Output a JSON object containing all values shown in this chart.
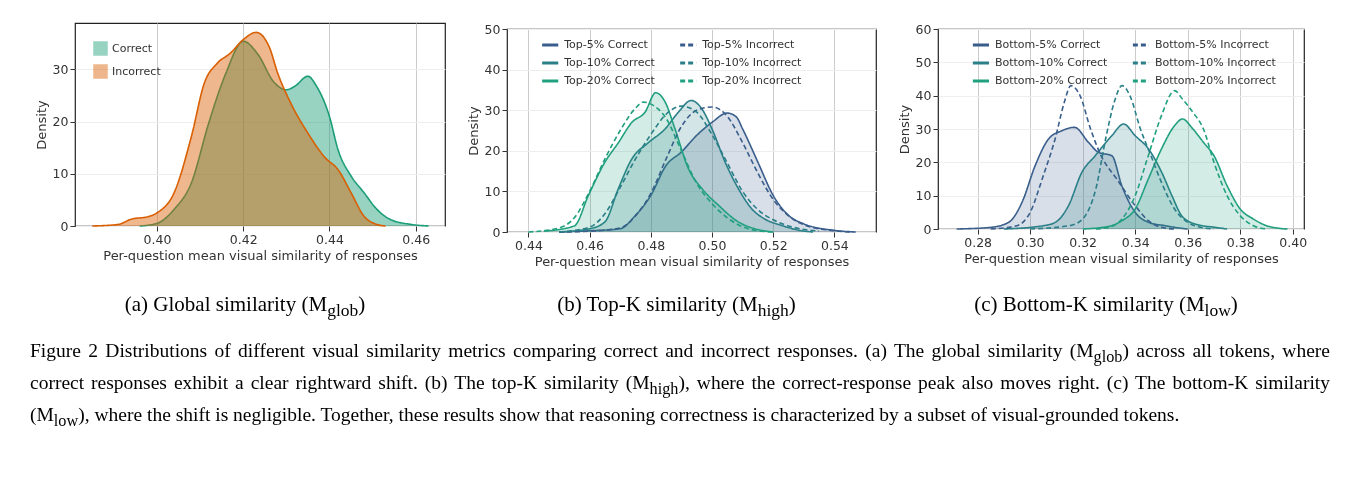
{
  "chart_data": [
    {
      "type": "area",
      "xlabel": "Per-question mean visual similarity of responses",
      "ylabel": "Density",
      "xlim": [
        0.381,
        0.4668
      ],
      "ylim": [
        0,
        38.9
      ],
      "xticks": [
        {
          "value": 0.4,
          "label": "0.40"
        },
        {
          "value": 0.42,
          "label": "0.42"
        },
        {
          "value": 0.44,
          "label": "0.44"
        },
        {
          "value": 0.46,
          "label": "0.46"
        }
      ],
      "yticks": [
        0,
        10,
        20,
        30
      ],
      "grid": true,
      "legend": "top left",
      "annotations": [
        "(a)  Global similarity (M$_{glob}$)",
        "Figure 2  Distributions of different visual similarity metrics comparing correct and incorrect responses. (a) The global similarity (M$_{glob}$) across all tokens, where correct responses exhibit a clear rightward shift. (b) The top-K similarity (M$_{high}$), where the correct-response peak also moves right. (c) The bottom-K similarity (M$_{low}$), where the shift is negligible. Together, these results show that reasoning correctness is characterized by a subset of visual-grounded tokens."
      ],
      "series": [
        {
          "name": "Correct",
          "color": "#1b9e77",
          "x": [
            0.396,
            0.4,
            0.404,
            0.408,
            0.412,
            0.416,
            0.42,
            0.4235,
            0.427,
            0.43,
            0.432,
            0.435,
            0.437,
            0.44,
            0.442,
            0.445,
            0.448,
            0.451,
            0.454,
            0.459,
            0.463
          ],
          "values": [
            0,
            0.5,
            3.2,
            8.3,
            19.7,
            29.3,
            35.4,
            32.8,
            27.7,
            26.1,
            26.8,
            28.7,
            26.8,
            21,
            14.6,
            9.6,
            6.4,
            3.2,
            1.3,
            0.3,
            0
          ]
        },
        {
          "name": "Incorrect",
          "color": "#d95f02",
          "x": [
            0.385,
            0.391,
            0.394,
            0.398,
            0.4,
            0.404,
            0.408,
            0.411,
            0.414,
            0.417,
            0.42,
            0.423,
            0.426,
            0.428,
            0.431,
            0.435,
            0.439,
            0.442,
            0.445,
            0.448,
            0.451,
            0.453
          ],
          "values": [
            0,
            0.3,
            1.3,
            1.8,
            2.5,
            6.4,
            17.2,
            27.4,
            31.2,
            33.1,
            35.7,
            37.1,
            34.4,
            29.3,
            23.6,
            17.8,
            13.1,
            10.8,
            6.4,
            1.9,
            0.3,
            0
          ]
        }
      ]
    },
    {
      "type": "area",
      "xlabel": "Per-question mean visual similarity of responses",
      "ylabel": "Density",
      "xlim": [
        0.433,
        0.5536
      ],
      "ylim": [
        0,
        50
      ],
      "xticks": [
        {
          "value": 0.44,
          "label": "0.44"
        },
        {
          "value": 0.46,
          "label": "0.46"
        },
        {
          "value": 0.48,
          "label": "0.48"
        },
        {
          "value": 0.5,
          "label": "0.50"
        },
        {
          "value": 0.52,
          "label": "0.52"
        },
        {
          "value": 0.54,
          "label": "0.54"
        }
      ],
      "yticks": [
        0,
        10,
        20,
        30,
        40,
        50
      ],
      "grid": true,
      "legend": "top",
      "annotations": [
        "(b)  Top-K similarity (M$_{high}$)"
      ],
      "series": [
        {
          "name": "Top-5% Correct",
          "color": "#3a5e8c",
          "x": [
            0.45,
            0.46,
            0.47,
            0.475,
            0.48,
            0.485,
            0.49,
            0.495,
            0.5,
            0.505,
            0.508,
            0.51,
            0.515,
            0.52,
            0.525,
            0.53,
            0.54,
            0.547
          ],
          "values": [
            0,
            0.3,
            0.8,
            4.1,
            9,
            16.4,
            19.7,
            23.8,
            27,
            29.3,
            28.3,
            25.4,
            17.2,
            9,
            4.1,
            2,
            0.4,
            0
          ]
        },
        {
          "name": "Top-10% Correct",
          "color": "#2a7f88",
          "x": [
            0.45,
            0.46,
            0.465,
            0.4694,
            0.4738,
            0.4792,
            0.4847,
            0.489,
            0.4932,
            0.4967,
            0.5,
            0.5043,
            0.5086,
            0.513,
            0.517,
            0.5228,
            0.528,
            0.533
          ],
          "values": [
            0,
            0.8,
            2.5,
            10.7,
            18,
            22,
            25.4,
            29.5,
            32.4,
            30.3,
            25.4,
            17.2,
            10.7,
            5.7,
            3.3,
            1.6,
            0.5,
            0
          ]
        },
        {
          "name": "Top-20% Correct",
          "color": "#21a07f",
          "x": [
            0.445,
            0.455,
            0.4596,
            0.465,
            0.4694,
            0.4738,
            0.4781,
            0.4816,
            0.4847,
            0.4879,
            0.4923,
            0.4967,
            0.5021,
            0.5086,
            0.514,
            0.517,
            0.52
          ],
          "values": [
            0.2,
            1.5,
            9,
            17.2,
            22,
            27,
            29.5,
            34.3,
            32,
            25.4,
            15.6,
            10.7,
            6.6,
            2.5,
            0.8,
            0.3,
            0
          ]
        },
        {
          "name": "Top-5% Incorrect",
          "type": "line",
          "line_style": "dashed",
          "color": "#3a5e8c",
          "x": [
            0.45,
            0.46,
            0.47,
            0.475,
            0.48,
            0.485,
            0.49,
            0.495,
            0.5,
            0.505,
            0.51,
            0.515,
            0.52,
            0.525,
            0.53,
            0.54,
            0.545
          ],
          "values": [
            0,
            0.2,
            1,
            4,
            9.5,
            18,
            26,
            30,
            30.8,
            28.5,
            22,
            14.5,
            8,
            4,
            1.8,
            0.3,
            0
          ]
        },
        {
          "name": "Top-10% Incorrect",
          "type": "line",
          "line_style": "dashed",
          "color": "#2a7f88",
          "x": [
            0.45,
            0.46,
            0.465,
            0.47,
            0.475,
            0.48,
            0.485,
            0.49,
            0.495,
            0.5,
            0.505,
            0.51,
            0.515,
            0.52,
            0.525,
            0.535
          ],
          "values": [
            0,
            1.2,
            4.5,
            11,
            18,
            24,
            29,
            31,
            29.5,
            24,
            17,
            10,
            5.5,
            3,
            1.5,
            0.2
          ]
        },
        {
          "name": "Top-20% Incorrect",
          "type": "line",
          "line_style": "dashed",
          "color": "#21a07f",
          "x": [
            0.44,
            0.45,
            0.455,
            0.46,
            0.465,
            0.47,
            0.475,
            0.4775,
            0.48,
            0.485,
            0.49,
            0.495,
            0.5,
            0.505,
            0.51,
            0.515,
            0.52
          ],
          "values": [
            0,
            1,
            3.5,
            10,
            18,
            25,
            30.5,
            32,
            31.5,
            28,
            20,
            12,
            7,
            3.5,
            1.3,
            0.3,
            0
          ]
        }
      ]
    },
    {
      "type": "area",
      "xlabel": "Per-question mean visual similarity of responses",
      "ylabel": "Density",
      "xlim": [
        0.2649,
        0.4043
      ],
      "ylim": [
        0,
        60
      ],
      "xticks": [
        {
          "value": 0.28,
          "label": "0.28"
        },
        {
          "value": 0.3,
          "label": "0.30"
        },
        {
          "value": 0.32,
          "label": "0.32"
        },
        {
          "value": 0.34,
          "label": "0.34"
        },
        {
          "value": 0.36,
          "label": "0.36"
        },
        {
          "value": 0.38,
          "label": "0.38"
        },
        {
          "value": 0.4,
          "label": "0.40"
        }
      ],
      "yticks": [
        0,
        10,
        20,
        30,
        40,
        50,
        60
      ],
      "grid": true,
      "legend": "top",
      "annotations": [
        "(c)  Bottom-K similarity (M$_{low}$)"
      ],
      "series": [
        {
          "name": "Bottom-5% Correct",
          "color": "#3a5e8c",
          "x": [
            0.272,
            0.285,
            0.2918,
            0.2969,
            0.3019,
            0.307,
            0.3121,
            0.3169,
            0.3222,
            0.326,
            0.3311,
            0.3349,
            0.34,
            0.3451,
            0.3514,
            0.3577,
            0.36
          ],
          "values": [
            0,
            0.5,
            2,
            8,
            19,
            27,
            29.5,
            30.5,
            26,
            23,
            22,
            13,
            5,
            2,
            1,
            0.2,
            0
          ]
        },
        {
          "name": "Bottom-10% Correct",
          "color": "#2a7f88",
          "x": [
            0.29,
            0.305,
            0.3096,
            0.3146,
            0.3197,
            0.3248,
            0.3311,
            0.3356,
            0.34,
            0.3451,
            0.3501,
            0.354,
            0.3577,
            0.3628,
            0.3704,
            0.375
          ],
          "values": [
            0,
            1,
            2,
            7,
            17,
            22,
            28,
            31.5,
            28,
            24,
            17,
            10,
            4,
            1.5,
            0.5,
            0
          ]
        },
        {
          "name": "Bottom-20% Correct",
          "color": "#21a07f",
          "x": [
            0.32,
            0.33,
            0.335,
            0.34,
            0.345,
            0.35,
            0.355,
            0.358,
            0.362,
            0.366,
            0.37,
            0.375,
            0.38,
            0.385,
            0.39,
            0.395,
            0.398
          ],
          "values": [
            0,
            0.8,
            2.5,
            6,
            15,
            24,
            31,
            33,
            30,
            26,
            22,
            13,
            6,
            3,
            1,
            0.2,
            0
          ]
        },
        {
          "name": "Bottom-5% Incorrect",
          "type": "line",
          "line_style": "dashed",
          "color": "#3a5e8c",
          "x": [
            0.285,
            0.295,
            0.3,
            0.305,
            0.3095,
            0.313,
            0.3155,
            0.319,
            0.323,
            0.327,
            0.333,
            0.34,
            0.345,
            0.35,
            0.355
          ],
          "values": [
            0,
            1,
            5,
            16,
            27,
            38,
            43,
            40,
            30,
            22,
            15,
            7,
            2.5,
            0.5,
            0
          ]
        },
        {
          "name": "Bottom-10% Incorrect",
          "type": "line",
          "line_style": "dashed",
          "color": "#2a7f88",
          "x": [
            0.3,
            0.315,
            0.32,
            0.325,
            0.329,
            0.332,
            0.335,
            0.338,
            0.342,
            0.346,
            0.35,
            0.355,
            0.36,
            0.365,
            0.37
          ],
          "values": [
            0,
            1,
            3,
            12,
            28,
            38,
            43,
            40,
            30,
            22,
            14,
            6,
            2,
            0.5,
            0
          ]
        },
        {
          "name": "Bottom-20% Incorrect",
          "type": "line",
          "line_style": "dashed",
          "color": "#21a07f",
          "x": [
            0.325,
            0.33,
            0.335,
            0.34,
            0.345,
            0.35,
            0.355,
            0.358,
            0.362,
            0.366,
            0.37,
            0.375,
            0.38,
            0.385,
            0.39
          ],
          "values": [
            0,
            0.5,
            3,
            10,
            22,
            34,
            41.5,
            39,
            35,
            30,
            20,
            10,
            4,
            1,
            0
          ]
        }
      ]
    }
  ]
}
